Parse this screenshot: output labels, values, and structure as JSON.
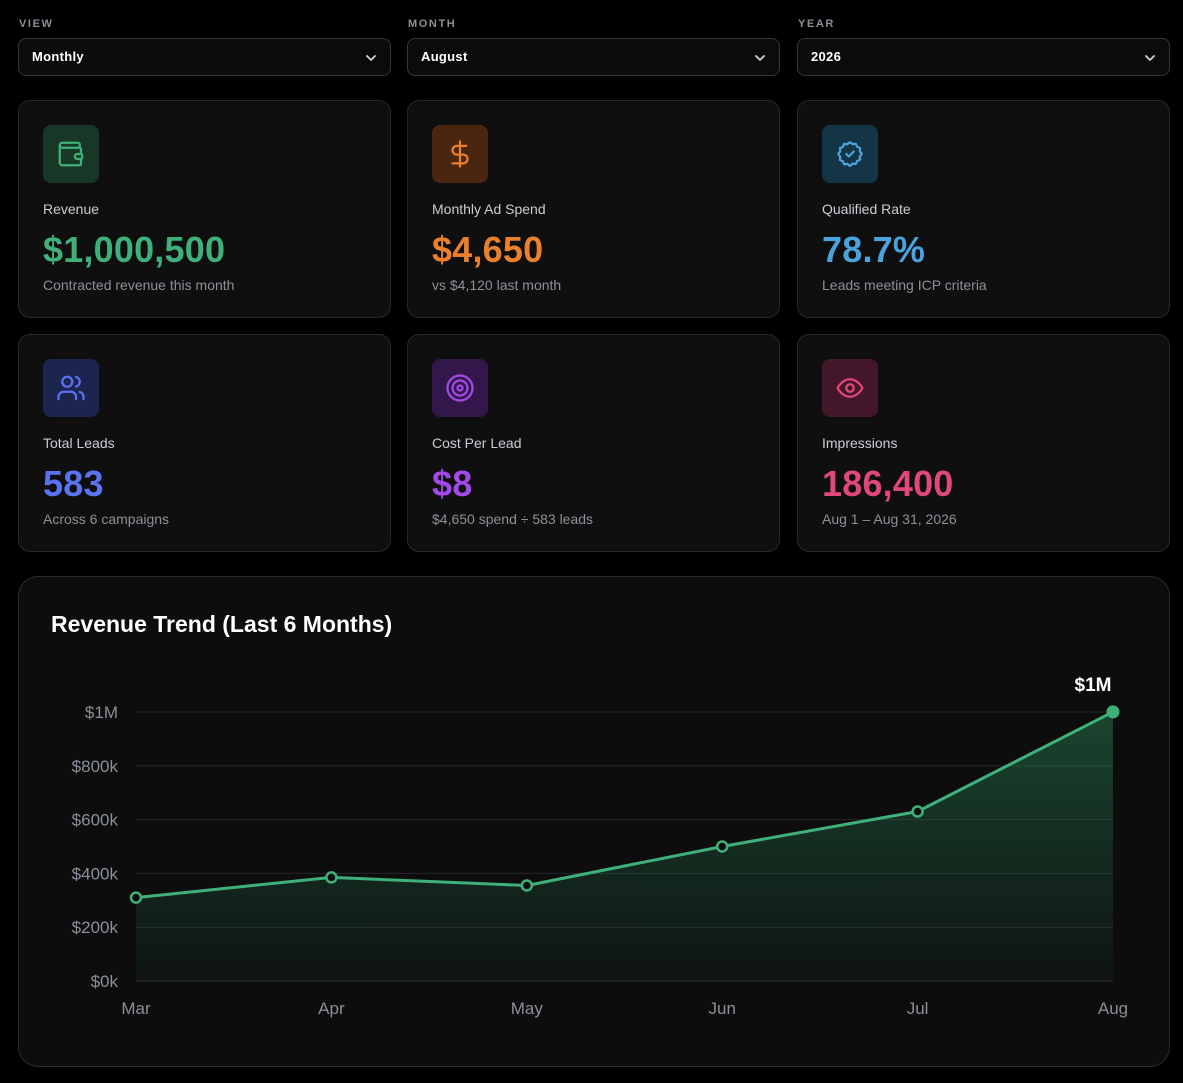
{
  "filters": [
    {
      "label": "VIEW",
      "value": "Monthly"
    },
    {
      "label": "MONTH",
      "value": "August"
    },
    {
      "label": "YEAR",
      "value": "2026"
    }
  ],
  "cards": [
    {
      "title": "Revenue",
      "value": "$1,000,500",
      "sub": "Contracted revenue this month",
      "icon": "wallet-icon",
      "color": "#3fb07a",
      "bg": "#173826"
    },
    {
      "title": "Monthly Ad Spend",
      "value": "$4,650",
      "sub": "vs $4,120 last month",
      "icon": "dollar-icon",
      "color": "#ea7f2c",
      "bg": "#4a2510"
    },
    {
      "title": "Qualified Rate",
      "value": "78.7%",
      "sub": "Leads meeting ICP criteria",
      "icon": "badge-check-icon",
      "color": "#4aa3dc",
      "bg": "#133545"
    },
    {
      "title": "Total Leads",
      "value": "583",
      "sub": "Across 6 campaigns",
      "icon": "users-icon",
      "color": "#5b73f0",
      "bg": "#1c2550"
    },
    {
      "title": "Cost Per Lead",
      "value": "$8",
      "sub": "$4,650 spend ÷ 583 leads",
      "icon": "target-icon",
      "color": "#a349e8",
      "bg": "#32174a"
    },
    {
      "title": "Impressions",
      "value": "186,400",
      "sub": "Aug 1 – Aug 31, 2026",
      "icon": "eye-icon",
      "color": "#e0487a",
      "bg": "#44162a"
    }
  ],
  "chart": {
    "title": "Revenue Trend (Last 6 Months)",
    "peak_label": "$1M"
  },
  "chart_data": {
    "type": "area",
    "title": "Revenue Trend (Last 6 Months)",
    "categories": [
      "Mar",
      "Apr",
      "May",
      "Jun",
      "Jul",
      "Aug"
    ],
    "series": [
      {
        "values": [
          310000,
          385000,
          355000,
          500000,
          630000,
          1000500
        ]
      }
    ],
    "yticks": [
      "$0k",
      "$200k",
      "$400k",
      "$600k",
      "$800k",
      "$1M"
    ],
    "ylim": [
      0,
      1000000
    ],
    "grid": true,
    "annotations": [
      {
        "x": "Aug",
        "text": "$1M"
      }
    ],
    "color": "#3fb07a"
  }
}
